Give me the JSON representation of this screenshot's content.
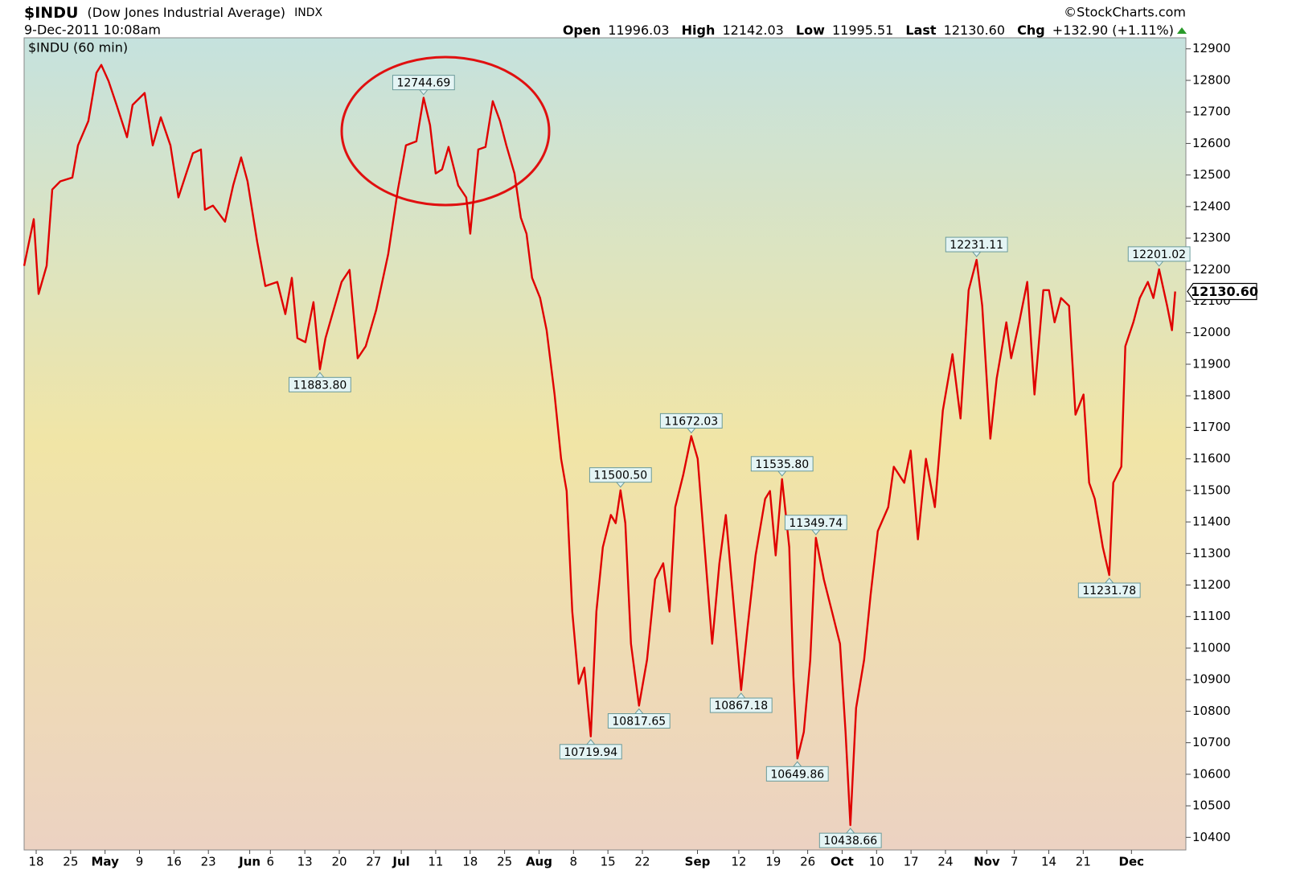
{
  "chart_data": {
    "type": "line",
    "title": "$INDU",
    "subtitle": "(Dow Jones Industrial Average)",
    "exchange": "INDX",
    "date": "9-Dec-2011 10:08am",
    "source": "©StockCharts.com",
    "quote": [
      {
        "label": "Open",
        "value": "11996.03"
      },
      {
        "label": "High",
        "value": "12142.03"
      },
      {
        "label": "Low",
        "value": "11995.51"
      },
      {
        "label": "Last",
        "value": "12130.60"
      },
      {
        "label": "Chg",
        "value": "+132.90 (+1.11%)"
      }
    ],
    "legend": "$INDU (60 min)",
    "last_tag": "12130.60",
    "series": [
      {
        "name": "$INDU",
        "color": "#e00000",
        "x": [
          -1.75,
          -0.35,
          0.35,
          1.52,
          2.33,
          3.5,
          5.25,
          6.07,
          7.58,
          8.75,
          9.45,
          10.5,
          11.67,
          13.19,
          14.0,
          15.75,
          16.92,
          18.09,
          19.49,
          20.65,
          21.59,
          22.75,
          23.92,
          24.5,
          25.67,
          27.42,
          28.59,
          29.75,
          30.69,
          32.09,
          33.26,
          35.0,
          36.17,
          37.11,
          37.92,
          39.09,
          40.26,
          41.19,
          42.0,
          43.17,
          44.34,
          45.5,
          46.67,
          47.84,
          49.36,
          51.11,
          52.51,
          53.68,
          55.19,
          56.24,
          57.18,
          57.99,
          58.93,
          59.86,
          61.26,
          62.43,
          63.01,
          64.18,
          65.23,
          66.28,
          67.33,
          68.26,
          69.43,
          70.36,
          71.18,
          71.99,
          73.16,
          74.1,
          75.26,
          76.2,
          77.01,
          77.83,
          78.76,
          79.58,
          80.51,
          81.33,
          82.26,
          83.43,
          84.13,
          84.83,
          85.53,
          86.35,
          87.51,
          88.68,
          89.85,
          91.02,
          91.95,
          92.77,
          93.93,
          95.1,
          96.03,
          96.85,
          98.13,
          99.18,
          100.12,
          100.93,
          102.33,
          103.27,
          104.43,
          105.83,
          106.53,
          107.35,
          108.28,
          109.33,
          109.92,
          110.5,
          111.44,
          112.37,
          113.19,
          114.35,
          115.52,
          116.69,
          117.5,
          118.2,
          119.02,
          120.19,
          121.12,
          122.17,
          123.69,
          124.5,
          126.02,
          126.95,
          128.0,
          129.17,
          130.46,
          131.62,
          133.02,
          134.19,
          135.36,
          136.52,
          137.34,
          138.51,
          139.44,
          140.84,
          141.54,
          142.71,
          143.87,
          144.92,
          146.21,
          147.02,
          147.84,
          148.77,
          149.94,
          150.88,
          152.04,
          152.86,
          153.68,
          154.84,
          155.78,
          156.36,
          157.53,
          158.11,
          159.28,
          160.21,
          161.38,
          162.19,
          163.01,
          164.18,
          164.88,
          165.35
        ],
        "values": [
          12212,
          12360,
          12123,
          12212,
          12454,
          12480,
          12492,
          12594,
          12671,
          12824,
          12849,
          12798,
          12722,
          12620,
          12722,
          12760,
          12594,
          12683,
          12594,
          12429,
          12492,
          12569,
          12581,
          12390,
          12403,
          12352,
          12467,
          12556,
          12480,
          12288,
          12148,
          12161,
          12059,
          12174,
          11983,
          11970,
          12097,
          11883.8,
          11983,
          12072,
          12161,
          12199,
          11919,
          11957,
          12072,
          12250,
          12454,
          12594,
          12607,
          12744.69,
          12658,
          12505,
          12518,
          12589,
          12467,
          12429,
          12314,
          12581,
          12589,
          12734,
          12671,
          12594,
          12505,
          12365,
          12314,
          12174,
          12110,
          12008,
          11804,
          11600,
          11498,
          11116,
          10887,
          10938,
          10719.94,
          11116,
          11320,
          11422,
          11396,
          11500.5,
          11396,
          11014,
          10817.65,
          10963,
          11218,
          11269,
          11116,
          11447,
          11549,
          11672.03,
          11600,
          11371,
          11014,
          11269,
          11422,
          11218,
          10867.18,
          11065,
          11294,
          11473,
          11498,
          11294,
          11535.8,
          11320,
          10912,
          10649.86,
          10734,
          10963,
          11349.74,
          11218,
          11116,
          11014,
          10734,
          10438.66,
          10810,
          10963,
          11167,
          11371,
          11447,
          11575,
          11524,
          11626,
          11345,
          11600,
          11447,
          11753,
          11932,
          11728,
          12135,
          12231.11,
          12085,
          11664,
          11855,
          12033,
          11919,
          12033,
          12161,
          11804,
          12135,
          12135,
          12033,
          12110,
          12085,
          11740,
          11804,
          11524,
          11473,
          11320,
          11231.78,
          11524,
          11575,
          11957,
          12033,
          12110,
          12161,
          12110,
          12201.02,
          12085,
          12008,
          12130.6
        ],
        "value_labels": [
          null,
          null,
          null,
          null,
          null,
          null,
          null,
          null,
          null,
          null,
          null,
          null,
          null,
          null,
          null,
          null,
          null,
          null,
          null,
          null,
          null,
          null,
          null,
          null,
          null,
          null,
          null,
          null,
          null,
          null,
          null,
          null,
          null,
          null,
          null,
          null,
          null,
          "11883.80",
          null,
          null,
          null,
          null,
          null,
          null,
          null,
          null,
          null,
          null,
          null,
          "12744.69",
          null,
          null,
          null,
          null,
          null,
          null,
          null,
          null,
          null,
          null,
          null,
          null,
          null,
          null,
          null,
          null,
          null,
          null,
          null,
          null,
          null,
          null,
          null,
          null,
          "10719.94",
          null,
          null,
          null,
          null,
          "11500.50",
          null,
          null,
          "10817.65",
          null,
          null,
          null,
          null,
          null,
          null,
          "11672.03",
          null,
          null,
          null,
          null,
          null,
          null,
          "10867.18",
          null,
          null,
          null,
          null,
          null,
          "11535.80",
          null,
          null,
          "10649.86",
          null,
          null,
          "11349.74",
          null,
          null,
          null,
          null,
          "10438.66",
          null,
          null,
          null,
          null,
          null,
          null,
          null,
          null,
          null,
          null,
          null,
          null,
          null,
          null,
          null,
          "12231.11",
          null,
          null,
          null,
          null,
          null,
          null,
          null,
          null,
          null,
          null,
          null,
          null,
          null,
          null,
          null,
          null,
          null,
          null,
          "11231.78",
          null,
          null,
          null,
          null,
          null,
          null,
          null,
          "12201.02",
          null,
          null,
          null
        ]
      }
    ],
    "xlim": [
      -1.75,
      166.9
    ],
    "xticks": [
      {
        "value": 0,
        "label": "18"
      },
      {
        "value": 5,
        "label": "25"
      },
      {
        "value": 10,
        "label": "May"
      },
      {
        "value": 15,
        "label": "9"
      },
      {
        "value": 20,
        "label": "16"
      },
      {
        "value": 25,
        "label": "23"
      },
      {
        "value": 31,
        "label": "Jun"
      },
      {
        "value": 34,
        "label": "6"
      },
      {
        "value": 39,
        "label": "13"
      },
      {
        "value": 44,
        "label": "20"
      },
      {
        "value": 49,
        "label": "27"
      },
      {
        "value": 53,
        "label": "Jul"
      },
      {
        "value": 58,
        "label": "11"
      },
      {
        "value": 63,
        "label": "18"
      },
      {
        "value": 68,
        "label": "25"
      },
      {
        "value": 73,
        "label": "Aug"
      },
      {
        "value": 78,
        "label": "8"
      },
      {
        "value": 83,
        "label": "15"
      },
      {
        "value": 88,
        "label": "22"
      },
      {
        "value": 96,
        "label": "Sep"
      },
      {
        "value": 102,
        "label": "12"
      },
      {
        "value": 107,
        "label": "19"
      },
      {
        "value": 112,
        "label": "26"
      },
      {
        "value": 117,
        "label": "Oct"
      },
      {
        "value": 122,
        "label": "10"
      },
      {
        "value": 127,
        "label": "17"
      },
      {
        "value": 132,
        "label": "24"
      },
      {
        "value": 138,
        "label": "Nov"
      },
      {
        "value": 142,
        "label": "7"
      },
      {
        "value": 147,
        "label": "14"
      },
      {
        "value": 152,
        "label": "21"
      },
      {
        "value": 159,
        "label": "Dec"
      }
    ],
    "ylim": [
      10360,
      12935
    ],
    "yticks": [
      10400,
      10500,
      10600,
      10700,
      10800,
      10900,
      11000,
      11100,
      11200,
      11300,
      11400,
      11500,
      11600,
      11700,
      11800,
      11900,
      12000,
      12100,
      12200,
      12300,
      12400,
      12500,
      12600,
      12700,
      12800,
      12900
    ],
    "grid": false
  }
}
